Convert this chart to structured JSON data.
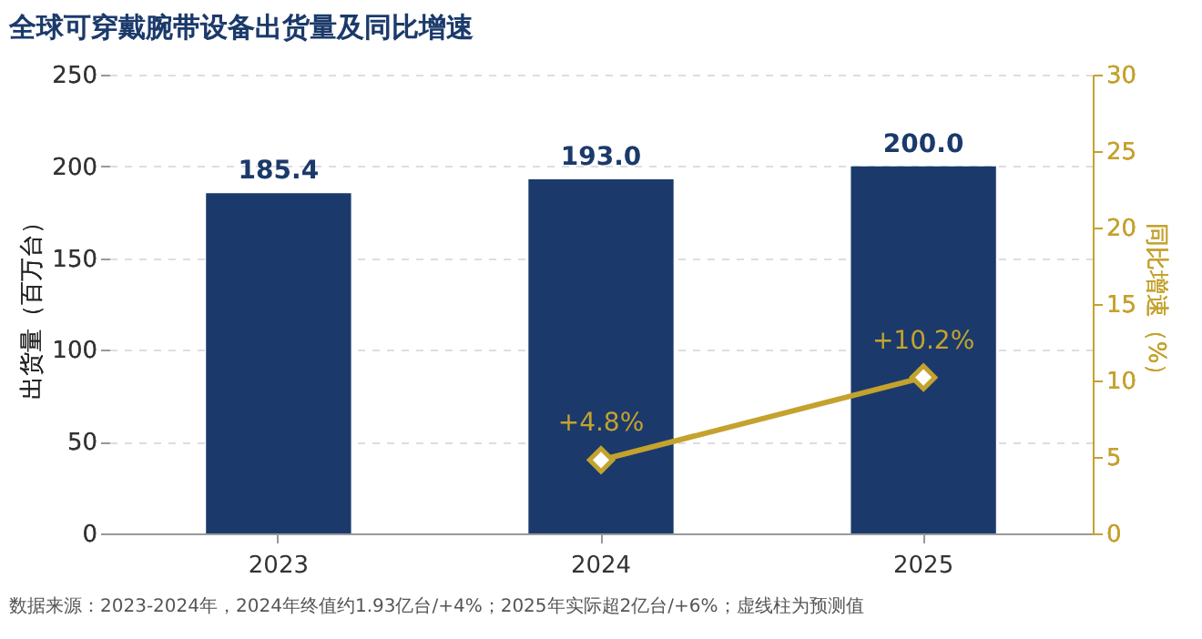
{
  "chart_data": {
    "type": "bar",
    "title": "全球可穿戴腕带设备出货量及同比增速",
    "ylabel": "出货量（百万台）",
    "y2label": "同比增速（%）",
    "categories": [
      "2023",
      "2024",
      "2025"
    ],
    "series": [
      {
        "color": "#1b3a6b",
        "values": [
          185.4,
          193.0,
          200.0
        ],
        "value_labels": [
          "185.4",
          "193.0",
          "200.0"
        ]
      },
      {
        "type": "line",
        "axis": "y2",
        "color": "#c4a22e",
        "values": [
          null,
          4.8,
          10.2
        ],
        "value_labels": [
          null,
          "+4.8%",
          "+10.2%"
        ],
        "marker": "diamond"
      }
    ],
    "ylim": [
      0,
      250
    ],
    "yticks": [
      0,
      50,
      100,
      150,
      200,
      250
    ],
    "y2lim": [
      0,
      30
    ],
    "y2ticks": [
      0,
      5,
      10,
      15,
      20,
      25,
      30
    ],
    "grid": "y",
    "annotations": [
      "数据来源：2023-2024年，2024年终值约1.93亿台/+4%；2025年实际超2亿台/+6%；虚线柱为预测值"
    ]
  }
}
